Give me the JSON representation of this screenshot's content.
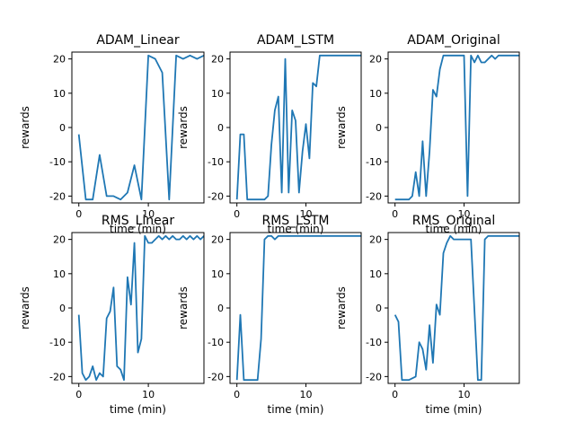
{
  "figure": {
    "line_color": "#1f77b4"
  },
  "chart_data": [
    {
      "type": "line",
      "title": "ADAM_Linear",
      "xlabel": "time (min)",
      "ylabel": "rewards",
      "xlim": [
        -1,
        18
      ],
      "ylim": [
        -22,
        22
      ],
      "xticks": [
        0,
        10
      ],
      "yticks": [
        -20,
        -10,
        0,
        10,
        20
      ],
      "x": [
        0,
        1,
        2,
        3,
        4,
        5,
        6,
        7,
        8,
        9,
        10,
        11,
        12,
        13,
        14,
        15,
        16,
        17,
        18
      ],
      "y": [
        -2,
        -21,
        -21,
        -8,
        -20,
        -20,
        -21,
        -19,
        -11,
        -21,
        21,
        20,
        16,
        -21,
        21,
        20,
        21,
        20,
        21
      ],
      "x_extra": [],
      "note": "approximate readout"
    },
    {
      "type": "line",
      "title": "ADAM_LSTM",
      "xlabel": "time (min)",
      "ylabel": "rewards",
      "xlim": [
        -1,
        18
      ],
      "ylim": [
        -22,
        22
      ],
      "xticks": [
        0,
        10
      ],
      "yticks": [
        -20,
        -10,
        0,
        10,
        20
      ],
      "x": [
        0,
        0.5,
        1,
        1.5,
        2,
        3,
        4,
        4.5,
        5,
        5.5,
        6,
        6.5,
        7,
        7.5,
        8,
        8.5,
        9,
        9.5,
        10,
        10.5,
        11,
        11.5,
        12,
        12.5,
        13,
        13.5,
        14,
        15,
        16,
        17,
        18
      ],
      "y": [
        -21,
        -2,
        -2,
        -21,
        -21,
        -21,
        -21,
        -20,
        -5,
        5,
        9,
        -19,
        20,
        -19,
        5,
        2,
        -19,
        -7,
        1,
        -9,
        13,
        12,
        21,
        21,
        21,
        21,
        21,
        21,
        21,
        21,
        21
      ]
    },
    {
      "type": "line",
      "title": "ADAM_Original",
      "xlabel": "time (min)",
      "ylabel": "rewards",
      "xlim": [
        -1,
        18
      ],
      "ylim": [
        -22,
        22
      ],
      "xticks": [
        0,
        10
      ],
      "yticks": [
        -20,
        -10,
        0,
        10,
        20
      ],
      "x": [
        0,
        1,
        2,
        2.5,
        3,
        3.5,
        4,
        4.5,
        5,
        5.5,
        6,
        6.5,
        7,
        8,
        9,
        10,
        10.5,
        11,
        11.5,
        12,
        12.5,
        13,
        13.5,
        14,
        14.5,
        15,
        16,
        17,
        18
      ],
      "y": [
        -21,
        -21,
        -21,
        -20,
        -13,
        -20,
        -4,
        -20,
        -7,
        11,
        9,
        17,
        21,
        21,
        21,
        21,
        -20,
        21,
        19,
        21,
        19,
        19,
        20,
        21,
        20,
        21,
        21,
        21,
        21
      ]
    },
    {
      "type": "line",
      "title": "RMS_Linear",
      "xlabel": "time (min)",
      "ylabel": "rewards",
      "xlim": [
        -1,
        18
      ],
      "ylim": [
        -22,
        22
      ],
      "xticks": [
        0,
        10
      ],
      "yticks": [
        -20,
        -10,
        0,
        10,
        20
      ],
      "x": [
        0,
        0.5,
        1,
        1.5,
        2,
        2.5,
        3,
        3.5,
        4,
        4.5,
        5,
        5.5,
        6,
        6.5,
        7,
        7.5,
        8,
        8.5,
        9,
        9.5,
        10,
        10.5,
        11,
        11.5,
        12,
        12.5,
        13,
        13.5,
        14,
        14.5,
        15,
        15.5,
        16,
        16.5,
        17,
        17.5,
        18
      ],
      "y": [
        -2,
        -19,
        -21,
        -20,
        -17,
        -21,
        -19,
        -20,
        -3,
        -1,
        6,
        -17,
        -18,
        -21,
        9,
        1,
        19,
        -13,
        -9,
        21,
        19,
        19,
        20,
        21,
        20,
        21,
        20,
        21,
        20,
        20,
        21,
        20,
        21,
        20,
        21,
        20,
        21
      ]
    },
    {
      "type": "line",
      "title": "RMS_LSTM",
      "xlabel": "time (min)",
      "ylabel": "rewards",
      "xlim": [
        -1,
        18
      ],
      "ylim": [
        -22,
        22
      ],
      "xticks": [
        0,
        10
      ],
      "yticks": [
        -20,
        -10,
        0,
        10,
        20
      ],
      "x": [
        0,
        0.5,
        1,
        2,
        3,
        3.5,
        4,
        4.5,
        5,
        5.5,
        6,
        7,
        8,
        9,
        10,
        11,
        12,
        13,
        14,
        15,
        16,
        17,
        18
      ],
      "y": [
        -21,
        -2,
        -21,
        -21,
        -21,
        -9,
        20,
        21,
        21,
        20,
        21,
        21,
        21,
        21,
        21,
        21,
        21,
        21,
        21,
        21,
        21,
        21,
        21
      ]
    },
    {
      "type": "line",
      "title": "RMS_Original",
      "xlabel": "time (min)",
      "ylabel": "rewards",
      "xlim": [
        -1,
        18
      ],
      "ylim": [
        -22,
        22
      ],
      "xticks": [
        0,
        10
      ],
      "yticks": [
        -20,
        -10,
        0,
        10,
        20
      ],
      "x": [
        0,
        0.5,
        1,
        2,
        3,
        3.5,
        4,
        4.5,
        5,
        5.5,
        6,
        6.5,
        7,
        7.5,
        8,
        8.5,
        9,
        9.5,
        10,
        10.5,
        11,
        12,
        12.5,
        13,
        13.5,
        14,
        15,
        16,
        17,
        18
      ],
      "y": [
        -2,
        -4,
        -21,
        -21,
        -20,
        -10,
        -12,
        -18,
        -5,
        -16,
        1,
        -2,
        16,
        19,
        21,
        20,
        20,
        20,
        20,
        20,
        20,
        -21,
        -21,
        20,
        21,
        21,
        21,
        21,
        21,
        21
      ]
    }
  ]
}
